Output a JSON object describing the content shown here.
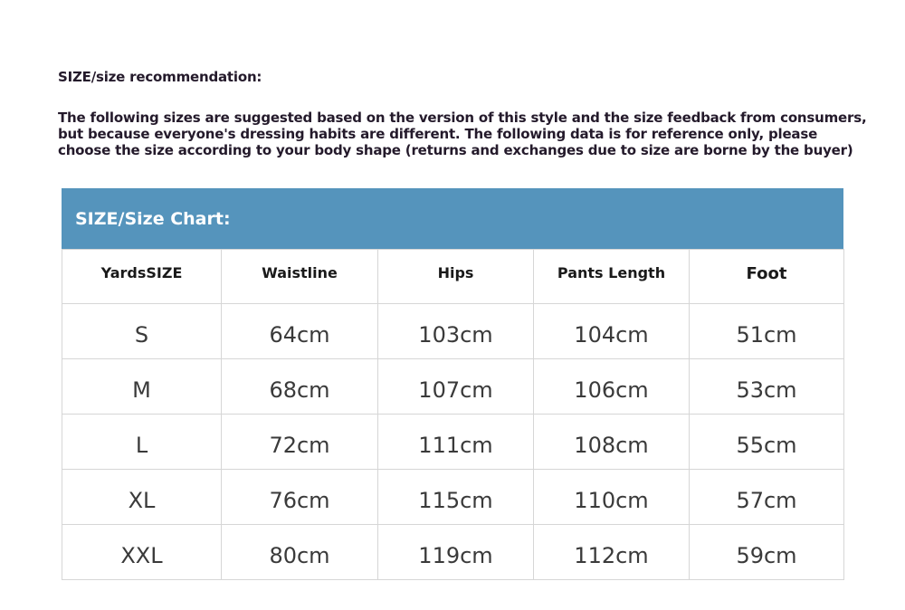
{
  "title": "SIZE/size recommendation:",
  "intro": "The following sizes are suggested based on the version of this style and the size feedback from consumers, but because everyone's dressing habits are different. The following data is for reference only, please choose the size according to your body shape (returns and exchanges due to size are borne by the buyer)",
  "chart": {
    "heading": "SIZE/Size Chart:",
    "header_color": "#5594bc",
    "columns": [
      "YardsSIZE",
      "Waistline",
      "Hips",
      "Pants Length",
      "Foot"
    ],
    "rows": [
      [
        "S",
        "64cm",
        "103cm",
        "104cm",
        "51cm"
      ],
      [
        "M",
        "68cm",
        "107cm",
        "106cm",
        "53cm"
      ],
      [
        "L",
        "72cm",
        "111cm",
        "108cm",
        "55cm"
      ],
      [
        "XL",
        "76cm",
        "115cm",
        "110cm",
        "57cm"
      ],
      [
        "XXL",
        "80cm",
        "119cm",
        "112cm",
        "59cm"
      ]
    ]
  }
}
